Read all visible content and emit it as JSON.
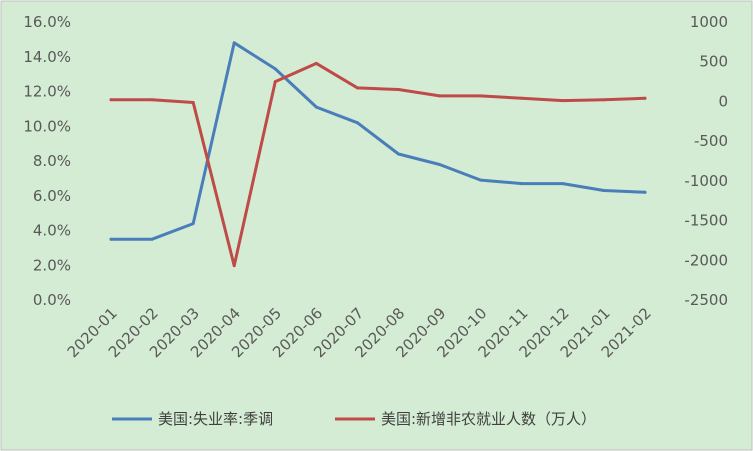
{
  "chart_data": {
    "type": "line",
    "categories": [
      "2020-01",
      "2020-02",
      "2020-03",
      "2020-04",
      "2020-05",
      "2020-06",
      "2020-07",
      "2020-08",
      "2020-09",
      "2020-10",
      "2020-11",
      "2020-12",
      "2021-01",
      "2021-02"
    ],
    "series": [
      {
        "name": "美国:失业率:季调",
        "axis": "left",
        "color": "#4a7ebb",
        "values": [
          3.5,
          3.5,
          4.4,
          14.8,
          13.3,
          11.1,
          10.2,
          8.4,
          7.8,
          6.9,
          6.7,
          6.7,
          6.3,
          6.2
        ]
      },
      {
        "name": "美国:新增非农就业人数（万人）",
        "axis": "right",
        "color": "#be4b48",
        "values": [
          21,
          21,
          -13,
          -2068,
          250,
          479,
          170,
          150,
          70,
          70,
          40,
          10,
          20,
          40
        ]
      }
    ],
    "y_left": {
      "min": 0,
      "max": 16,
      "step": 2,
      "ticks": [
        "0.0%",
        "2.0%",
        "4.0%",
        "6.0%",
        "8.0%",
        "10.0%",
        "12.0%",
        "14.0%",
        "16.0%"
      ]
    },
    "y_right": {
      "min": -2500,
      "max": 1000,
      "step": 500,
      "ticks": [
        "-2500",
        "-2000",
        "-1500",
        "-1000",
        "-500",
        "0",
        "500",
        "1000"
      ]
    },
    "grid": false,
    "legend": "bottom",
    "background": "#d4ecd4"
  }
}
